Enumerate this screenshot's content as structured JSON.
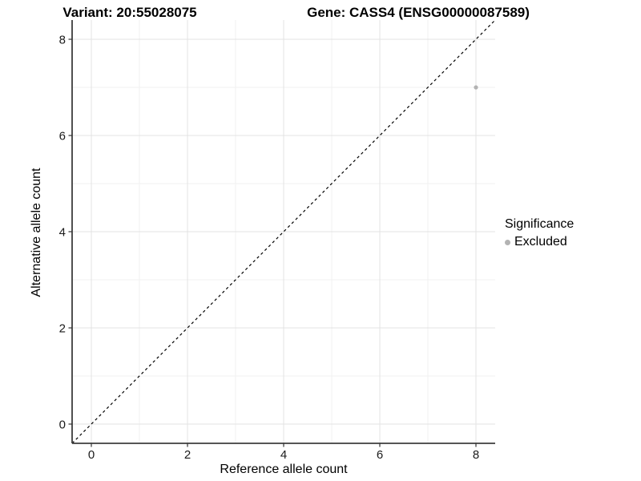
{
  "chart_data": {
    "type": "scatter",
    "title_left": "Variant: 20:55028075",
    "title_right": "Gene: CASS4 (ENSG00000087589)",
    "xlabel": "Reference allele count",
    "ylabel": "Alternative allele count",
    "xlim": [
      -0.4,
      8.4
    ],
    "ylim": [
      -0.4,
      8.4
    ],
    "x_ticks": [
      0,
      2,
      4,
      6,
      8
    ],
    "y_ticks": [
      0,
      2,
      4,
      6,
      8
    ],
    "x_minor": [
      1,
      3,
      5,
      7
    ],
    "y_minor": [
      1,
      3,
      5,
      7
    ],
    "grid": true,
    "reference_line": {
      "type": "identity",
      "style": "dashed",
      "from": [
        -0.4,
        -0.4
      ],
      "to": [
        8.4,
        8.4
      ]
    },
    "series": [
      {
        "name": "Excluded",
        "color": "#b3b3b3",
        "points": [
          {
            "x": 8,
            "y": 7
          }
        ]
      }
    ],
    "legend": {
      "title": "Significance",
      "position": "right",
      "entries": [
        "Excluded"
      ]
    }
  },
  "colors": {
    "background": "#ffffff",
    "grid_major": "#e3e3e3",
    "grid_minor": "#f0f0f0",
    "axis_line": "#3d3d3d",
    "tick_mark": "#333333",
    "tick_label": "#1a1a1a",
    "reference_line": "#000000",
    "point": "#b3b3b3",
    "text": "#000000"
  }
}
